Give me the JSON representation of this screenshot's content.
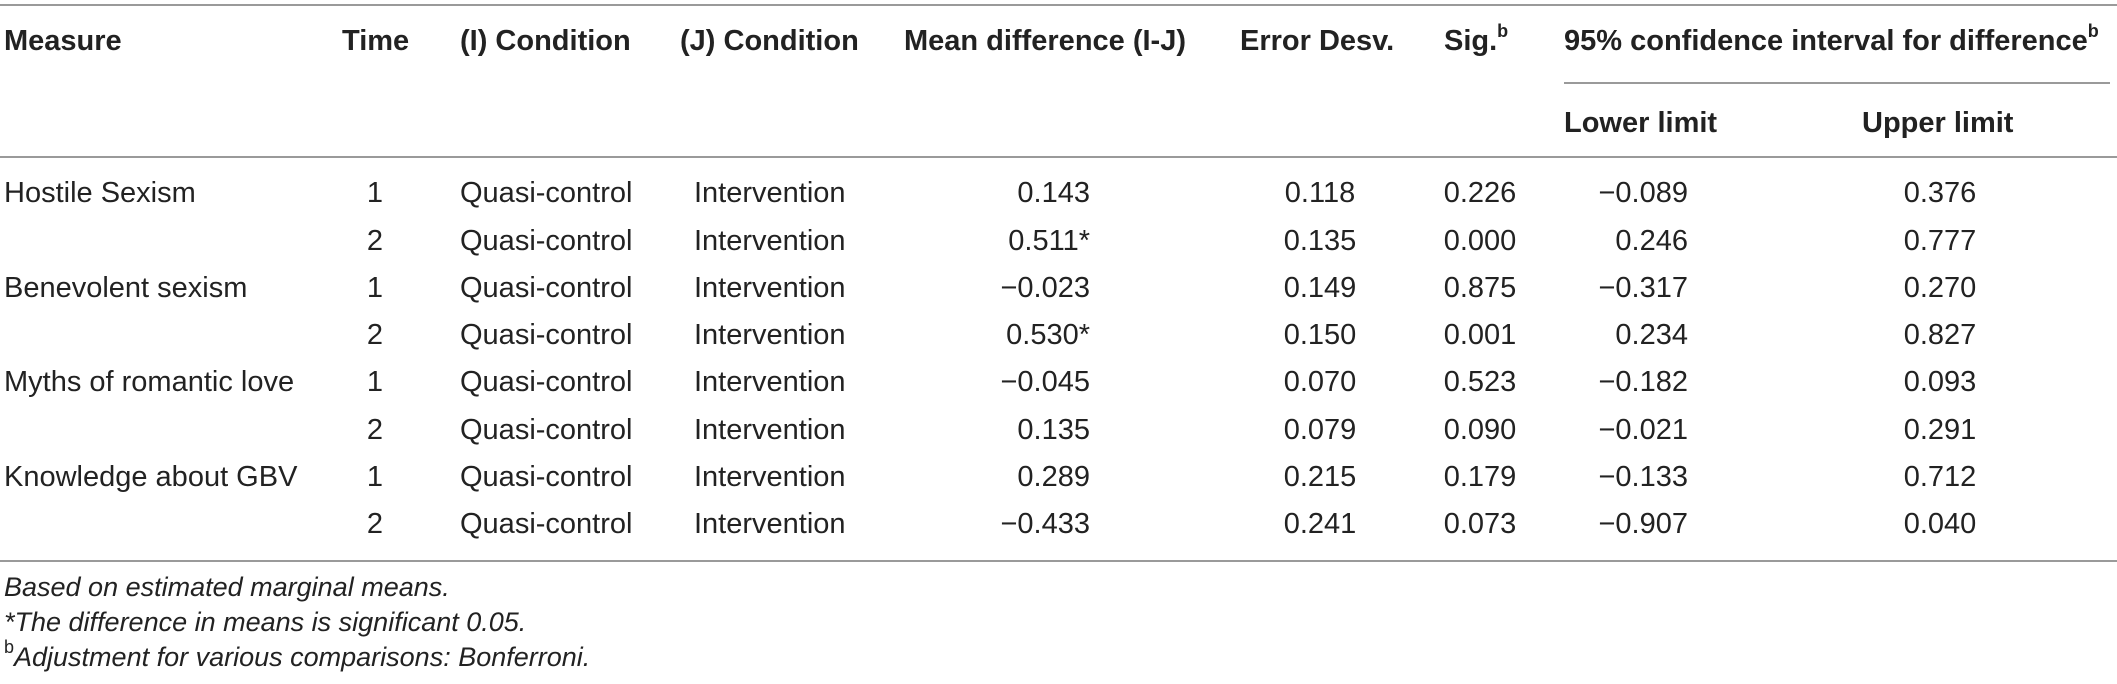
{
  "headers": {
    "measure": "Measure",
    "time": "Time",
    "i_condition": "(I) Condition",
    "j_condition": "(J) Condition",
    "mean_diff": "Mean difference (I-J)",
    "error": "Error Desv.",
    "sig": "Sig.",
    "sig_sup": "b",
    "ci": "95% confidence interval for difference",
    "ci_sup": "b",
    "lower": "Lower limit",
    "upper": "Upper limit"
  },
  "rows": [
    {
      "measure": "Hostile Sexism",
      "time": "1",
      "i": "Quasi-control",
      "j": "Intervention",
      "diff": "0.143",
      "err": "0.118",
      "sig": "0.226",
      "lower": "−0.089",
      "upper": "0.376"
    },
    {
      "measure": "",
      "time": "2",
      "i": "Quasi-control",
      "j": "Intervention",
      "diff": "0.511*",
      "err": "0.135",
      "sig": "0.000",
      "lower": "0.246",
      "upper": "0.777"
    },
    {
      "measure": "Benevolent sexism",
      "time": "1",
      "i": "Quasi-control",
      "j": "Intervention",
      "diff": "−0.023",
      "err": "0.149",
      "sig": "0.875",
      "lower": "−0.317",
      "upper": "0.270"
    },
    {
      "measure": "",
      "time": "2",
      "i": "Quasi-control",
      "j": "Intervention",
      "diff": "0.530*",
      "err": "0.150",
      "sig": "0.001",
      "lower": "0.234",
      "upper": "0.827"
    },
    {
      "measure": "Myths of romantic love",
      "time": "1",
      "i": "Quasi-control",
      "j": "Intervention",
      "diff": "−0.045",
      "err": "0.070",
      "sig": "0.523",
      "lower": "−0.182",
      "upper": "0.093"
    },
    {
      "measure": "",
      "time": "2",
      "i": "Quasi-control",
      "j": "Intervention",
      "diff": "0.135",
      "err": "0.079",
      "sig": "0.090",
      "lower": "−0.021",
      "upper": "0.291"
    },
    {
      "measure": "Knowledge about GBV",
      "time": "1",
      "i": "Quasi-control",
      "j": "Intervention",
      "diff": "0.289",
      "err": "0.215",
      "sig": "0.179",
      "lower": "−0.133",
      "upper": "0.712"
    },
    {
      "measure": "",
      "time": "2",
      "i": "Quasi-control",
      "j": "Intervention",
      "diff": "−0.433",
      "err": "0.241",
      "sig": "0.073",
      "lower": "−0.907",
      "upper": "0.040"
    }
  ],
  "notes": {
    "n1": "Based on estimated marginal means.",
    "n2": "*The difference in means is significant 0.05.",
    "n3_sup": "b",
    "n3": "Adjustment for various comparisons: Bonferroni."
  }
}
